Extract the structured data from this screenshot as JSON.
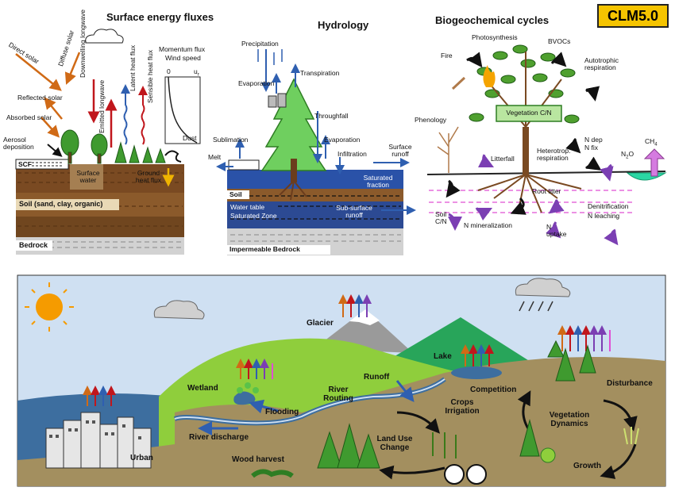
{
  "badge": "CLM5.0",
  "surface": {
    "title": "Surface energy fluxes",
    "direct_solar": "Direct solar",
    "diffuse_solar": "Diffuse solar",
    "downwelling_longwave": "Downwelling longwave",
    "emitted_longwave": "Emitted longwave",
    "latent_heat_flux": "Latent heat flux",
    "sensible_heat_flux": "Sensible heat flux",
    "momentum_flux": "Momentum flux",
    "wind_speed": "Wind speed",
    "axis_zero": "0",
    "axis_u": "u",
    "axis_u_sub": "r",
    "reflected_solar": "Reflected solar",
    "absorbed_solar": "Absorbed solar",
    "aerosol_deposition": "Aerosol deposition",
    "dust": "Dust",
    "scf": "SCF",
    "surface_water": "Surface water",
    "ground_heat_flux": "Ground heat flux",
    "soil": "Soil (sand, clay, organic)",
    "bedrock": "Bedrock"
  },
  "hydrology": {
    "title": "Hydrology",
    "precipitation": "Precipitation",
    "transpiration": "Transpiration",
    "evaporation_canopy": "Evaporation",
    "throughfall": "Throughfall",
    "evaporation_ground": "Evaporation",
    "sublimation": "Sublimation",
    "melt": "Melt",
    "infiltration": "Infiltration",
    "surface_runoff": "Surface runoff",
    "saturated_fraction": "Saturated fraction",
    "soil": "Soil",
    "water_table": "Water table",
    "saturated_zone": "Saturated Zone",
    "subsurface_runoff": "Sub-surface runoff",
    "impermeable_bedrock": "Impermeable Bedrock"
  },
  "biogeo": {
    "title": "Biogeochemical cycles",
    "photosynthesis": "Photosynthesis",
    "bvocs": "BVOCs",
    "fire": "Fire",
    "autotrophic_respiration": "Autotrophic respiration",
    "phenology": "Phenology",
    "vegetation_cn": "Vegetation C/N",
    "n_dep": "N dep",
    "n_fix": "N fix",
    "ch4": "CH",
    "ch4_sub": "4",
    "n2o": "N",
    "n2o_sub": "2",
    "n2o_tail": "O",
    "litterfall": "Litterfall",
    "heterotrop_respiration": "Heterotrop. respiration",
    "root_litter": "Root litter",
    "soil_cn": "Soil C/N",
    "n_mineralization": "N mineralization",
    "n_uptake": "N uptake",
    "denitrification": "Denitrification",
    "n_leaching": "N leaching"
  },
  "landscape": {
    "glacier": "Glacier",
    "lake": "Lake",
    "wetland": "Wetland",
    "runoff": "Runoff",
    "river_routing": "River Routing",
    "flooding": "Flooding",
    "river_discharge": "River discharge",
    "urban": "Urban",
    "land_use_change": "Land Use Change",
    "crops_irrigation": "Crops Irrigation",
    "competition": "Competition",
    "disturbance": "Disturbance",
    "vegetation_dynamics": "Vegetation Dynamics",
    "growth": "Growth",
    "wood_harvest": "Wood harvest"
  },
  "colors": {
    "badge": "#f5c400",
    "sky": "#cfe0f2",
    "ground": "#a38f5f",
    "grass": "#8fce3c",
    "ocean": "#3d6e9f",
    "soil": "#8b5a2b",
    "bedrock": "#d2d2d2",
    "water": "#2a52a8",
    "purple": "#7b3fb3",
    "arrow_blue": "#2f5fb0"
  }
}
